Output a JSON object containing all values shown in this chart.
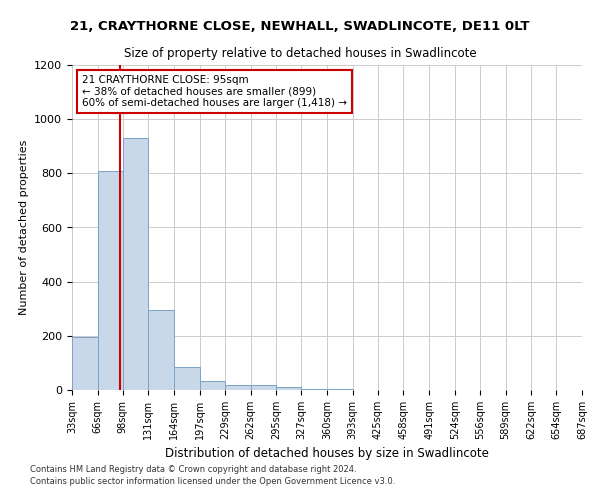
{
  "title": "21, CRAYTHORNE CLOSE, NEWHALL, SWADLINCOTE, DE11 0LT",
  "subtitle": "Size of property relative to detached houses in Swadlincote",
  "xlabel": "Distribution of detached houses by size in Swadlincote",
  "ylabel": "Number of detached properties",
  "footnote1": "Contains HM Land Registry data © Crown copyright and database right 2024.",
  "footnote2": "Contains public sector information licensed under the Open Government Licence v3.0.",
  "bin_edges": [
    33,
    66,
    98,
    131,
    164,
    197,
    229,
    262,
    295,
    327,
    360,
    393,
    425,
    458,
    491,
    524,
    556,
    589,
    622,
    654,
    687
  ],
  "bar_values": [
    195,
    810,
    930,
    295,
    85,
    35,
    20,
    18,
    12,
    5,
    3,
    1,
    1,
    0,
    0,
    0,
    0,
    0,
    0,
    0
  ],
  "bar_color": "#c8d8e8",
  "bar_edge_color": "#7ba3c8",
  "property_size": 95,
  "property_line_color": "#cc0000",
  "annotation_line1": "21 CRAYTHORNE CLOSE: 95sqm",
  "annotation_line2": "← 38% of detached houses are smaller (899)",
  "annotation_line3": "60% of semi-detached houses are larger (1,418) →",
  "annotation_box_color": "#cc0000",
  "ylim": [
    0,
    1200
  ],
  "yticks": [
    0,
    200,
    400,
    600,
    800,
    1000,
    1200
  ],
  "background_color": "#ffffff",
  "grid_color": "#cccccc"
}
